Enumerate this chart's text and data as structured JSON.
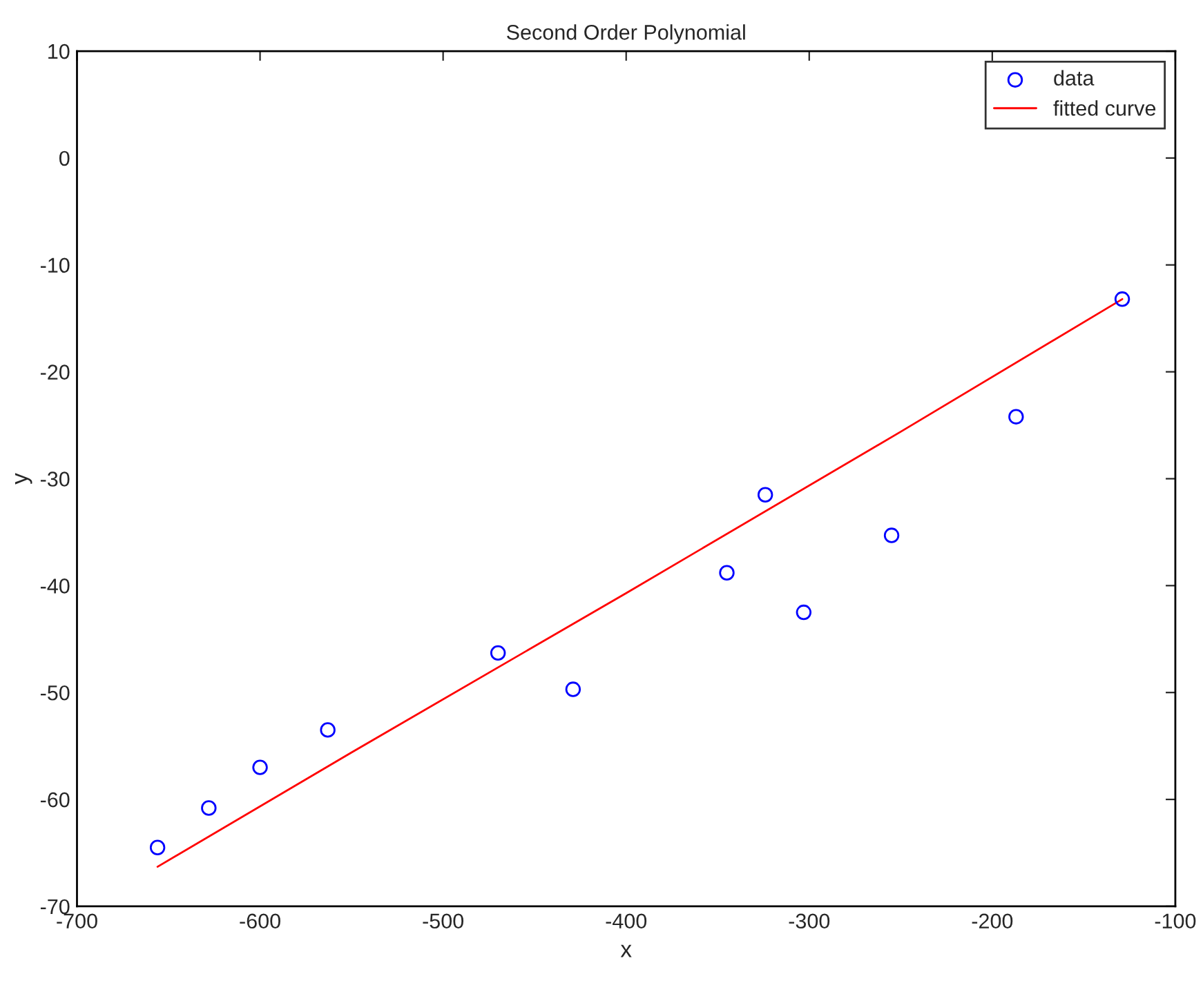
{
  "chart_data": {
    "type": "scatter",
    "title": "Second Order Polynomial",
    "xlabel": "x",
    "ylabel": "y",
    "series": [
      {
        "name": "data",
        "color": "#0000ff",
        "marker": "circle",
        "x": [
          -656,
          -628,
          -600,
          -563,
          -470,
          -429,
          -345,
          -324,
          -303,
          -255,
          -187,
          -129
        ],
        "values": [
          -64.5,
          -60.8,
          -57.0,
          -53.5,
          -46.3,
          -49.7,
          -38.8,
          -31.5,
          -42.5,
          -35.3,
          -24.2,
          -13.2
        ]
      },
      {
        "name": "fitted curve",
        "type": "line",
        "color": "#ff0000",
        "marker": "none",
        "line_style": "solid",
        "x": [
          -656,
          -550,
          -400,
          -250,
          -129
        ],
        "values": [
          -66.3,
          -55.6,
          -40.7,
          -25.6,
          -13.2
        ]
      }
    ],
    "xlim": [
      -700,
      -100
    ],
    "xticks": [
      -700,
      -600,
      -500,
      -400,
      -300,
      -200,
      -100
    ],
    "ylim": [
      -70,
      10
    ],
    "yticks": [
      -70,
      -60,
      -50,
      -40,
      -30,
      -20,
      -10,
      0,
      10
    ],
    "grid": false,
    "legend": "top right"
  }
}
